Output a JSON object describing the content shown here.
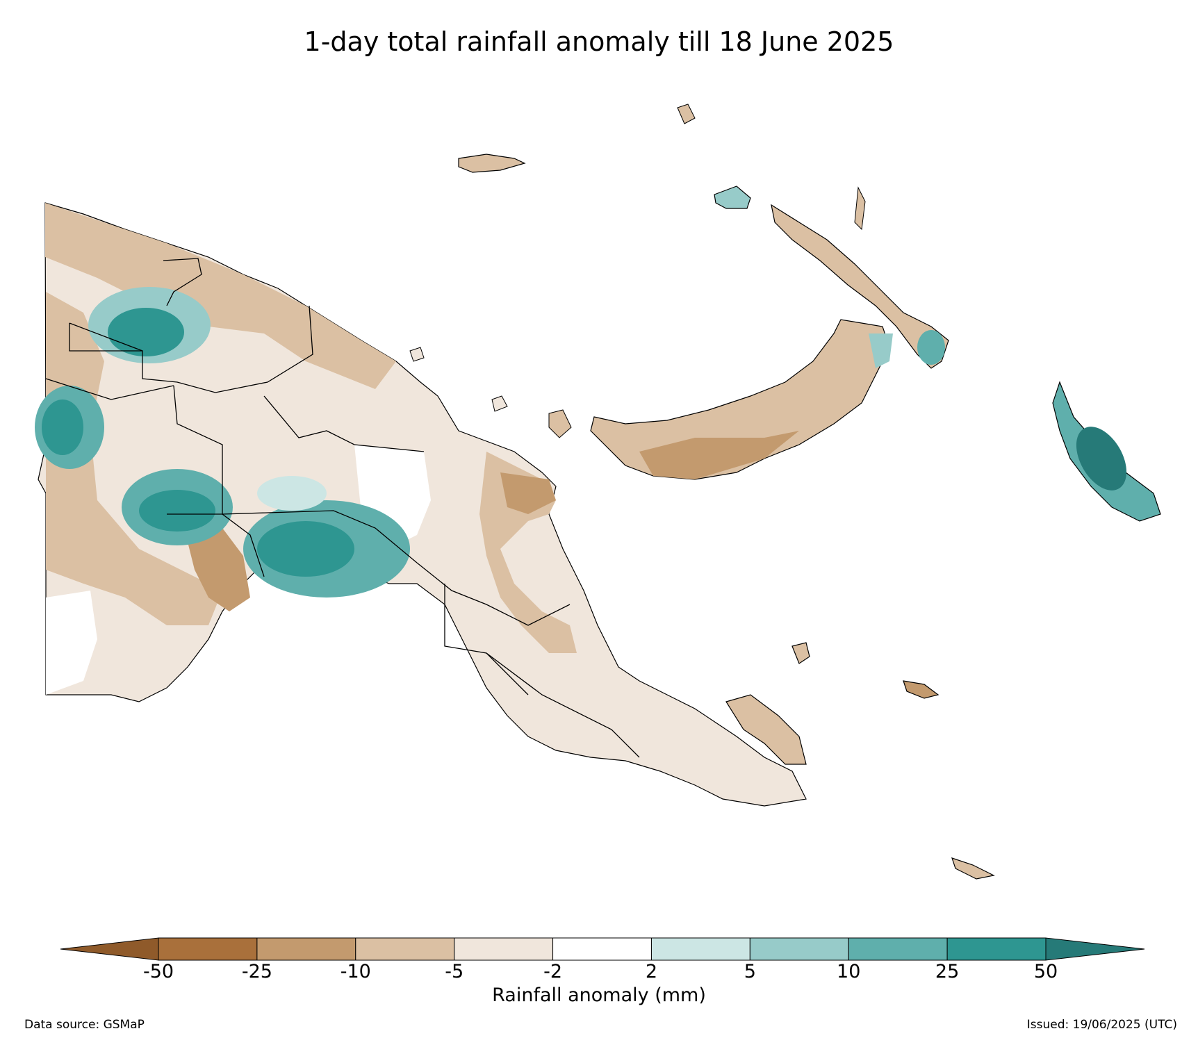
{
  "title": "1-day total rainfall anomaly till 18 June 2025",
  "colorbar": {
    "label": "Rainfall anomaly (mm)",
    "ticks": [
      "-50",
      "-25",
      "-10",
      "-5",
      "-2",
      "2",
      "5",
      "10",
      "25",
      "50"
    ],
    "colors": [
      "#8f5a2a",
      "#a9703b",
      "#c39a6e",
      "#dbc0a3",
      "#f0e6dc",
      "#ffffff",
      "#cce6e4",
      "#97cbc9",
      "#5fafac",
      "#2e9691",
      "#267a78"
    ]
  },
  "footer": {
    "source": "Data source: GSMaP",
    "issued": "Issued: 19/06/2025 (UTC)"
  }
}
